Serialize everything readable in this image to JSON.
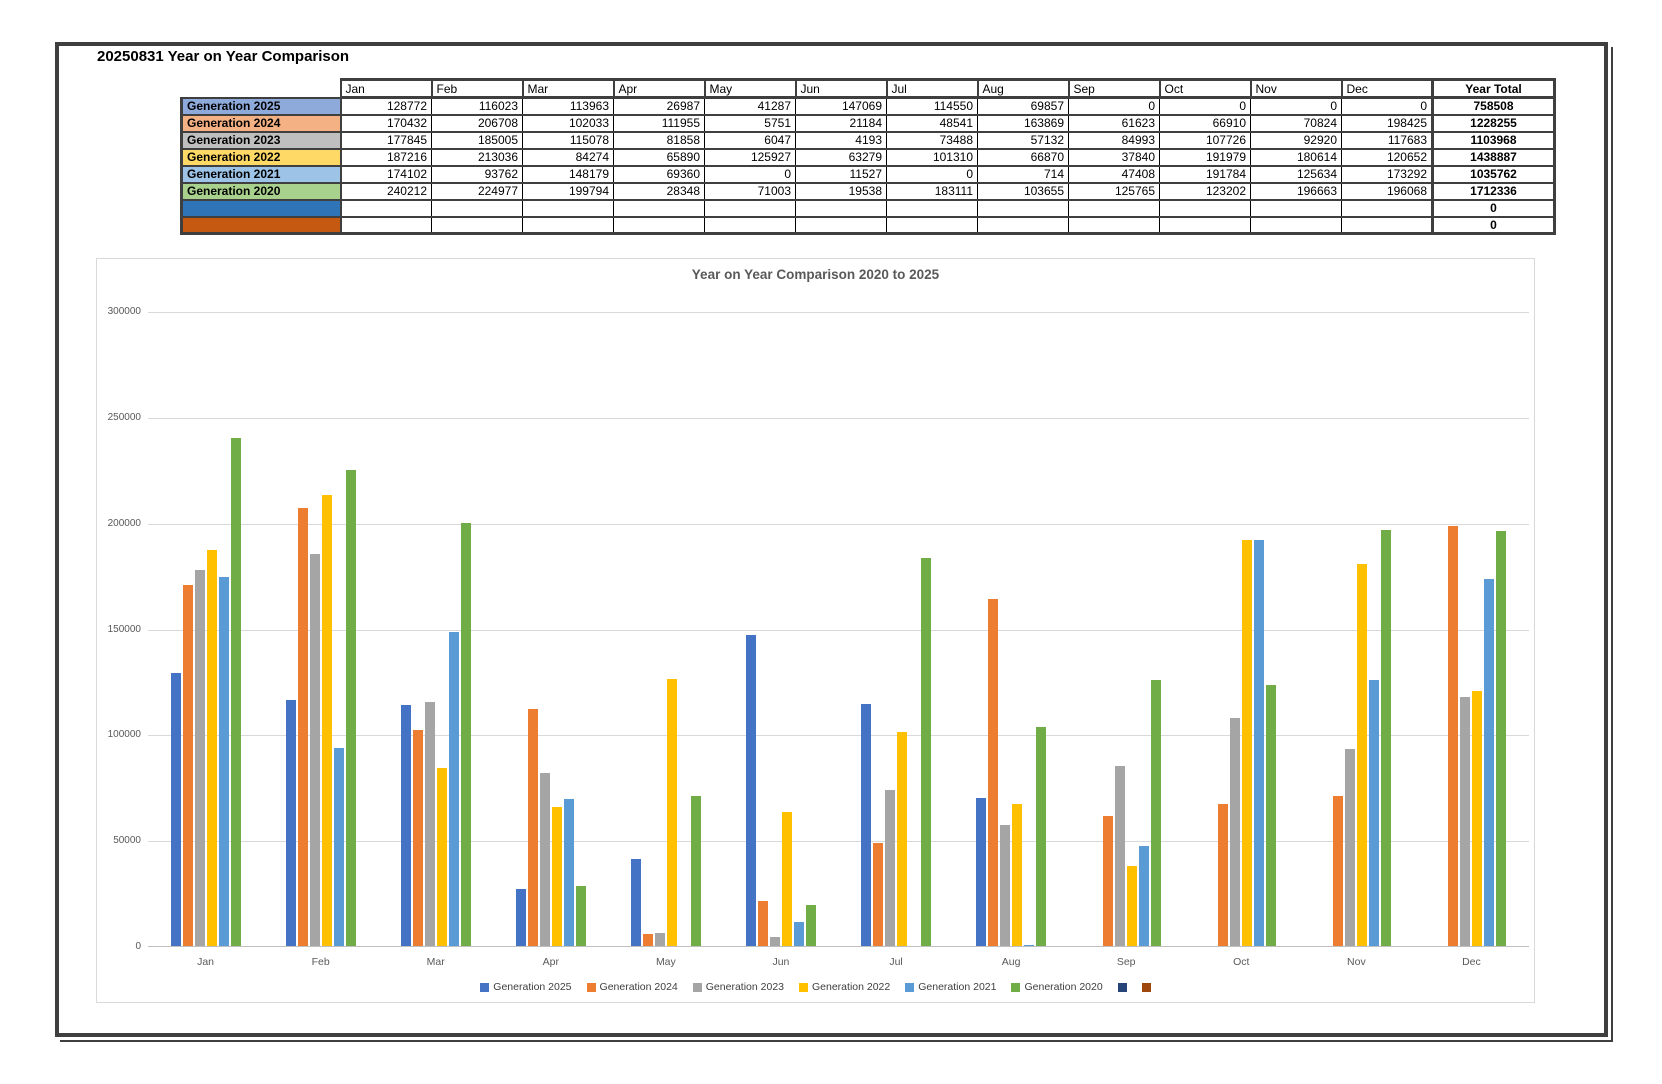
{
  "sheet": {
    "title": "20250831 Year on Year Comparison"
  },
  "table": {
    "corner_label": "",
    "month_headers": [
      "Jan",
      "Feb",
      "Mar",
      "Apr",
      "May",
      "Jun",
      "Jul",
      "Aug",
      "Sep",
      "Oct",
      "Nov",
      "Dec"
    ],
    "total_header": "Year Total",
    "rows": [
      {
        "label": "Generation 2025",
        "fill": "#8EAADB",
        "values": [
          128772,
          116023,
          113963,
          26987,
          41287,
          147069,
          114550,
          69857,
          0,
          0,
          0,
          0
        ],
        "total": "758508"
      },
      {
        "label": "Generation 2024",
        "fill": "#F4B183",
        "values": [
          170432,
          206708,
          102033,
          111955,
          5751,
          21184,
          48541,
          163869,
          61623,
          66910,
          70824,
          198425
        ],
        "total": "1228255"
      },
      {
        "label": "Generation 2023",
        "fill": "#BFBFBF",
        "values": [
          177845,
          185005,
          115078,
          81858,
          6047,
          4193,
          73488,
          57132,
          84993,
          107726,
          92920,
          117683
        ],
        "total": "1103968"
      },
      {
        "label": "Generation 2022",
        "fill": "#FFD966",
        "values": [
          187216,
          213036,
          84274,
          65890,
          125927,
          63279,
          101310,
          66870,
          37840,
          191979,
          180614,
          120652
        ],
        "total": "1438887"
      },
      {
        "label": "Generation 2021",
        "fill": "#9DC3E6",
        "values": [
          174102,
          93762,
          148179,
          69360,
          0,
          11527,
          0,
          714,
          47408,
          191784,
          125634,
          173292
        ],
        "total": "1035762"
      },
      {
        "label": "Generation 2020",
        "fill": "#A9D18E",
        "values": [
          240212,
          224977,
          199794,
          28348,
          71003,
          19538,
          183111,
          103655,
          125765,
          123202,
          196663,
          196068
        ],
        "total": "1712336"
      },
      {
        "label": "",
        "fill": "#2E74B6",
        "values": [
          "",
          "",
          "",
          "",
          "",
          "",
          "",
          "",
          "",
          "",
          "",
          ""
        ],
        "total": "0"
      },
      {
        "label": "",
        "fill": "#C55911",
        "values": [
          "",
          "",
          "",
          "",
          "",
          "",
          "",
          "",
          "",
          "",
          "",
          ""
        ],
        "total": "0"
      }
    ]
  },
  "chart_data": {
    "type": "bar",
    "title": "Year on Year Comparison 2020 to 2025",
    "categories": [
      "Jan",
      "Feb",
      "Mar",
      "Apr",
      "May",
      "Jun",
      "Jul",
      "Aug",
      "Sep",
      "Oct",
      "Nov",
      "Dec"
    ],
    "series": [
      {
        "name": "Generation 2025",
        "color": "#4472C4",
        "values": [
          128772,
          116023,
          113963,
          26987,
          41287,
          147069,
          114550,
          69857,
          0,
          0,
          0,
          0
        ]
      },
      {
        "name": "Generation 2024",
        "color": "#ED7D31",
        "values": [
          170432,
          206708,
          102033,
          111955,
          5751,
          21184,
          48541,
          163869,
          61623,
          66910,
          70824,
          198425
        ]
      },
      {
        "name": "Generation 2023",
        "color": "#A5A5A5",
        "values": [
          177845,
          185005,
          115078,
          81858,
          6047,
          4193,
          73488,
          57132,
          84993,
          107726,
          92920,
          117683
        ]
      },
      {
        "name": "Generation 2022",
        "color": "#FFC000",
        "values": [
          187216,
          213036,
          84274,
          65890,
          125927,
          63279,
          101310,
          66870,
          37840,
          191979,
          180614,
          120652
        ]
      },
      {
        "name": "Generation 2021",
        "color": "#5B9BD5",
        "values": [
          174102,
          93762,
          148179,
          69360,
          0,
          11527,
          0,
          714,
          47408,
          191784,
          125634,
          173292
        ]
      },
      {
        "name": "Generation 2020",
        "color": "#70AD47",
        "values": [
          240212,
          224977,
          199794,
          28348,
          71003,
          19538,
          183111,
          103655,
          125765,
          123202,
          196663,
          196068
        ]
      },
      {
        "name": "",
        "color": "#264478",
        "values": []
      },
      {
        "name": "",
        "color": "#9E480E",
        "values": []
      }
    ],
    "xlabel": "",
    "ylabel": "",
    "ylim": [
      0,
      300000
    ],
    "ytick_step": 50000,
    "grid": true,
    "legend_position": "bottom"
  }
}
